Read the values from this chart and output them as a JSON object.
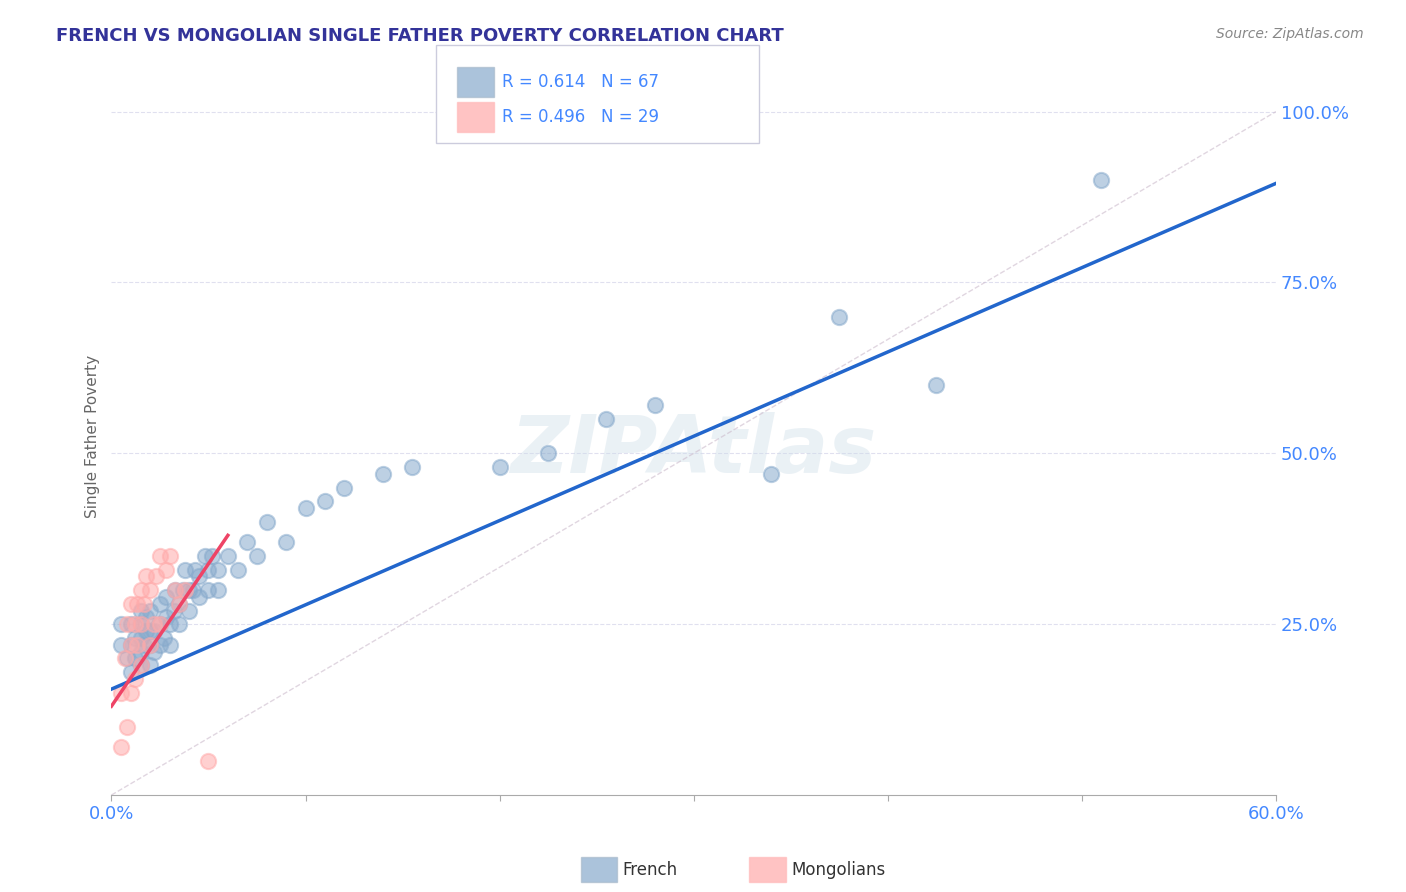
{
  "title": "FRENCH VS MONGOLIAN SINGLE FATHER POVERTY CORRELATION CHART",
  "source": "Source: ZipAtlas.com",
  "ylabel": "Single Father Poverty",
  "xlim": [
    0.0,
    0.6
  ],
  "ylim": [
    0.0,
    1.05
  ],
  "xticks": [
    0.0,
    0.1,
    0.2,
    0.3,
    0.4,
    0.5,
    0.6
  ],
  "xticklabels": [
    "0.0%",
    "",
    "",
    "",
    "",
    "",
    "60.0%"
  ],
  "ytick_positions": [
    0.25,
    0.5,
    0.75,
    1.0
  ],
  "yticklabels": [
    "25.0%",
    "50.0%",
    "75.0%",
    "100.0%"
  ],
  "french_R": 0.614,
  "french_N": 67,
  "mongolian_R": 0.496,
  "mongolian_N": 29,
  "french_color": "#88AACC",
  "mongolian_color": "#FFAAAA",
  "french_line_color": "#2266CC",
  "mongolian_line_color": "#EE4466",
  "title_color": "#333399",
  "axis_color": "#4488FF",
  "grid_color": "#DDDDEE",
  "french_scatter_x": [
    0.005,
    0.005,
    0.008,
    0.01,
    0.01,
    0.01,
    0.012,
    0.012,
    0.015,
    0.015,
    0.015,
    0.015,
    0.015,
    0.017,
    0.018,
    0.018,
    0.02,
    0.02,
    0.02,
    0.02,
    0.022,
    0.022,
    0.025,
    0.025,
    0.025,
    0.027,
    0.028,
    0.028,
    0.03,
    0.03,
    0.032,
    0.033,
    0.035,
    0.035,
    0.037,
    0.038,
    0.04,
    0.04,
    0.042,
    0.043,
    0.045,
    0.045,
    0.048,
    0.05,
    0.05,
    0.052,
    0.055,
    0.055,
    0.06,
    0.065,
    0.07,
    0.075,
    0.08,
    0.09,
    0.1,
    0.11,
    0.12,
    0.14,
    0.155,
    0.2,
    0.225,
    0.255,
    0.28,
    0.34,
    0.375,
    0.425,
    0.51
  ],
  "french_scatter_y": [
    0.22,
    0.25,
    0.2,
    0.18,
    0.22,
    0.25,
    0.2,
    0.23,
    0.19,
    0.21,
    0.23,
    0.25,
    0.27,
    0.22,
    0.24,
    0.26,
    0.19,
    0.22,
    0.24,
    0.27,
    0.21,
    0.24,
    0.22,
    0.25,
    0.28,
    0.23,
    0.26,
    0.29,
    0.22,
    0.25,
    0.27,
    0.3,
    0.25,
    0.28,
    0.3,
    0.33,
    0.27,
    0.3,
    0.3,
    0.33,
    0.29,
    0.32,
    0.35,
    0.3,
    0.33,
    0.35,
    0.3,
    0.33,
    0.35,
    0.33,
    0.37,
    0.35,
    0.4,
    0.37,
    0.42,
    0.43,
    0.45,
    0.47,
    0.48,
    0.48,
    0.5,
    0.55,
    0.57,
    0.47,
    0.7,
    0.6,
    0.9
  ],
  "mongolian_scatter_x": [
    0.005,
    0.005,
    0.007,
    0.008,
    0.008,
    0.01,
    0.01,
    0.01,
    0.012,
    0.012,
    0.013,
    0.013,
    0.015,
    0.015,
    0.015,
    0.017,
    0.018,
    0.02,
    0.02,
    0.022,
    0.023,
    0.025,
    0.025,
    0.028,
    0.03,
    0.033,
    0.035,
    0.038,
    0.05
  ],
  "mongolian_scatter_y": [
    0.07,
    0.15,
    0.2,
    0.1,
    0.25,
    0.15,
    0.22,
    0.28,
    0.17,
    0.25,
    0.22,
    0.28,
    0.19,
    0.25,
    0.3,
    0.28,
    0.32,
    0.22,
    0.3,
    0.25,
    0.32,
    0.25,
    0.35,
    0.33,
    0.35,
    0.3,
    0.28,
    0.3,
    0.05
  ],
  "french_line_x0": 0.0,
  "french_line_y0": 0.155,
  "french_line_x1": 0.6,
  "french_line_y1": 0.895,
  "mongolian_line_x0": 0.0,
  "mongolian_line_y0": 0.13,
  "mongolian_line_x1": 0.06,
  "mongolian_line_y1": 0.38
}
